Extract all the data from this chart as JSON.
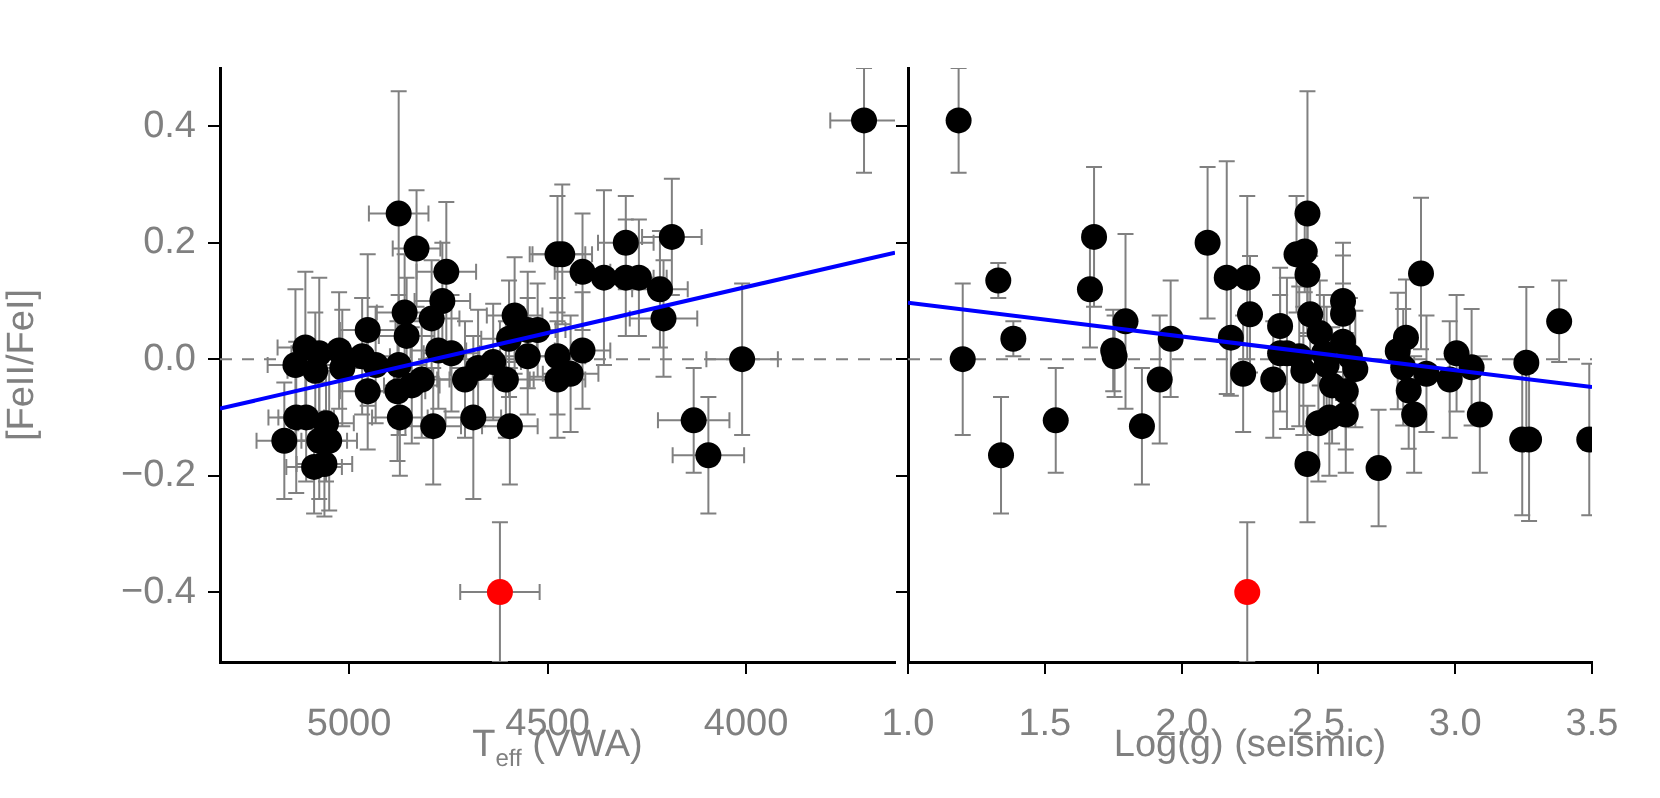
{
  "chart_data": [
    {
      "type": "scatter",
      "xlabel": "T$_{eff}$ (VWA)",
      "ylabel": "[FeII/FeI]",
      "xlim": [
        5325,
        3625
      ],
      "xticks": [
        5000,
        4500,
        4000
      ],
      "ylim": [
        -0.52,
        0.5
      ],
      "yticks": [
        {
          "value": -0.4,
          "label": "−0.4"
        },
        {
          "value": -0.2,
          "label": "−0.2"
        },
        {
          "value": 0,
          "label": "0.0"
        },
        {
          "value": 0.2,
          "label": "0.2"
        },
        {
          "value": 0.4,
          "label": "0.4"
        }
      ],
      "grid": false,
      "marker": "circle",
      "ref_lines": [
        {
          "axis": "y",
          "value": 0,
          "color": "#808080",
          "line_style": "dashed"
        }
      ],
      "series": [
        {
          "color": "#000000",
          "x": [
            4875,
            4830,
            4755,
            4765,
            4792,
            4860,
            4855,
            4953,
            5110,
            5135,
            5075,
            5025,
            5085,
            5017,
            4967,
            4933,
            4953,
            4878,
            4875,
            4842,
            4817,
            4775,
            4742,
            4708,
            4675,
            4637,
            4605,
            4597,
            4583,
            4550,
            4550,
            4872,
            4788,
            4687,
            4595,
            5163,
            5133,
            5108,
            5058,
            5075,
            5050,
            5088,
            5062,
            4475,
            4475,
            4475,
            3703,
            4463,
            4412,
            4358,
            4303,
            4303,
            4270,
            4187,
            4217,
            4208,
            4525,
            4412,
            4442,
            4010,
            4132,
            4095
          ],
          "values": [
            0.25,
            0.19,
            0.15,
            0.1,
            0.07,
            0.08,
            0.04,
            0.05,
            0.02,
            -0.01,
            0.01,
            0.015,
            -0.02,
            -0.015,
            0.005,
            -0.01,
            -0.055,
            -0.055,
            -0.01,
            -0.045,
            -0.035,
            0.015,
            0.01,
            -0.035,
            -0.015,
            -0.005,
            -0.035,
            0.035,
            0.075,
            0.05,
            0.005,
            -0.1,
            -0.115,
            -0.1,
            -0.115,
            -0.14,
            -0.1,
            -0.1,
            -0.11,
            -0.14,
            -0.14,
            -0.185,
            -0.18,
            0.18,
            0.005,
            -0.035,
            0.41,
            0.18,
            0.15,
            0.14,
            0.2,
            0.14,
            0.14,
            0.21,
            0.12,
            0.07,
            0.05,
            0.015,
            -0.025,
            0,
            -0.105,
            -0.165
          ],
          "errors": [
            0.21,
            0.1,
            0.12,
            0.1,
            0.1,
            0.1,
            0.1,
            0.13,
            0.13,
            0.13,
            0.13,
            0.1,
            0.1,
            0.1,
            0.1,
            0.1,
            0.1,
            0.12,
            0.12,
            0.1,
            0.1,
            0.1,
            0.1,
            0.1,
            0.1,
            0.1,
            0.1,
            0.1,
            0.1,
            0.1,
            0.1,
            0.1,
            0.1,
            0.14,
            0.1,
            0.1,
            0.13,
            0.11,
            0.1,
            0.1,
            0.12,
            0.08,
            0.09,
            0.1,
            0.1,
            0.1,
            0.09,
            0.12,
            0.1,
            0.15,
            0.08,
            0.1,
            0.1,
            0.1,
            0.1,
            0.1,
            0.08,
            0.1,
            0.1,
            0.13,
            0.09,
            0.1
          ],
          "xerrors": [
            75,
            60,
            75,
            70,
            70,
            70,
            70,
            70,
            70,
            70,
            70,
            70,
            70,
            70,
            70,
            70,
            70,
            70,
            70,
            70,
            70,
            70,
            70,
            70,
            70,
            70,
            70,
            70,
            70,
            70,
            70,
            70,
            70,
            70,
            70,
            70,
            70,
            70,
            70,
            70,
            70,
            70,
            70,
            70,
            70,
            70,
            85,
            75,
            70,
            70,
            70,
            70,
            70,
            75,
            70,
            85,
            70,
            70,
            70,
            90,
            90,
            90
          ]
        },
        {
          "color": "#ff0000",
          "x": [
            4620
          ],
          "values": [
            -0.4
          ],
          "errors": [
            0.12
          ],
          "xerrors": [
            100
          ]
        },
        {
          "type": "line",
          "marker": "none",
          "color": "#0000ff",
          "x": [
            5325,
            3625
          ],
          "values": [
            -0.085,
            0.183
          ]
        }
      ]
    },
    {
      "type": "scatter",
      "xlabel": "Log(g) (seismic)",
      "xlim": [
        1.0,
        3.5
      ],
      "xticks": [
        {
          "value": 1,
          "label": "1.0"
        },
        1.5,
        {
          "value": 2,
          "label": "2.0"
        },
        2.5,
        {
          "value": 3,
          "label": "3.0"
        },
        3.5
      ],
      "ylim": [
        -0.52,
        0.5
      ],
      "yticks": [
        -0.4,
        -0.2,
        0,
        0.2,
        0.4
      ],
      "tick_labels": "x",
      "grid": false,
      "marker": "circle",
      "ref_lines": [
        {
          "axis": "y",
          "value": 0,
          "color": "#808080",
          "line_style": "dashed"
        }
      ],
      "series": [
        {
          "color": "#000000",
          "x": [
            1.185,
            1.2,
            1.33,
            1.34,
            1.385,
            1.54,
            1.68,
            1.665,
            1.75,
            1.755,
            1.795,
            1.855,
            1.92,
            1.96,
            2.095,
            2.165,
            2.24,
            2.25,
            2.18,
            2.225,
            2.335,
            2.36,
            2.36,
            2.46,
            2.42,
            2.45,
            2.46,
            2.47,
            2.385,
            2.43,
            2.445,
            2.505,
            2.52,
            2.53,
            2.55,
            2.5,
            2.54,
            2.46,
            2.59,
            2.59,
            2.59,
            2.615,
            2.635,
            2.6,
            2.6,
            2.72,
            2.82,
            2.79,
            2.81,
            2.83,
            2.85,
            2.875,
            2.895,
            2.98,
            3.005,
            3.06,
            3.09,
            3.26,
            3.245,
            3.27,
            3.38,
            3.49
          ],
          "values": [
            0.41,
            0,
            0.135,
            -0.165,
            0.035,
            -0.105,
            0.21,
            0.12,
            0.015,
            0.005,
            0.065,
            -0.115,
            -0.035,
            0.035,
            0.2,
            0.14,
            0.14,
            0.077,
            0.037,
            -0.025,
            -0.035,
            0.057,
            0.01,
            0.25,
            0.18,
            0.185,
            0.145,
            0.077,
            0.01,
            0.005,
            -0.02,
            0.045,
            0.01,
            -0.01,
            -0.045,
            -0.11,
            -0.1,
            -0.18,
            0.1,
            0.078,
            0.03,
            0.005,
            -0.017,
            -0.055,
            -0.095,
            -0.187,
            0.037,
            0.014,
            -0.014,
            -0.054,
            -0.095,
            0.147,
            -0.025,
            -0.035,
            0.01,
            -0.014,
            -0.095,
            -0.006,
            -0.138,
            -0.138,
            0.065,
            -0.138
          ],
          "errors": [
            0.09,
            0.13,
            0.03,
            0.1,
            0.03,
            0.09,
            0.12,
            0.1,
            0.07,
            0.07,
            0.15,
            0.1,
            0.11,
            0.1,
            0.13,
            0.2,
            0.14,
            0.1,
            0.1,
            0.1,
            0.1,
            0.1,
            0.1,
            0.21,
            0.1,
            0.07,
            0.1,
            0.1,
            0.13,
            0.12,
            0.11,
            0.09,
            0.1,
            0.1,
            0.1,
            0.1,
            0.1,
            0.1,
            0.1,
            0.1,
            0.1,
            0.1,
            0.1,
            0.1,
            0.1,
            0.1,
            0.1,
            0.1,
            0.1,
            0.1,
            0.1,
            0.13,
            0.1,
            0.1,
            0.1,
            0.1,
            0.1,
            0.13,
            0.13,
            0.14,
            0.07,
            0.13
          ]
        },
        {
          "color": "#ff0000",
          "x": [
            2.24
          ],
          "values": [
            -0.4
          ],
          "errors": [
            0.12
          ]
        },
        {
          "type": "line",
          "marker": "none",
          "color": "#0000ff",
          "x": [
            1.0,
            3.5
          ],
          "values": [
            0.097,
            -0.048
          ]
        }
      ]
    }
  ]
}
